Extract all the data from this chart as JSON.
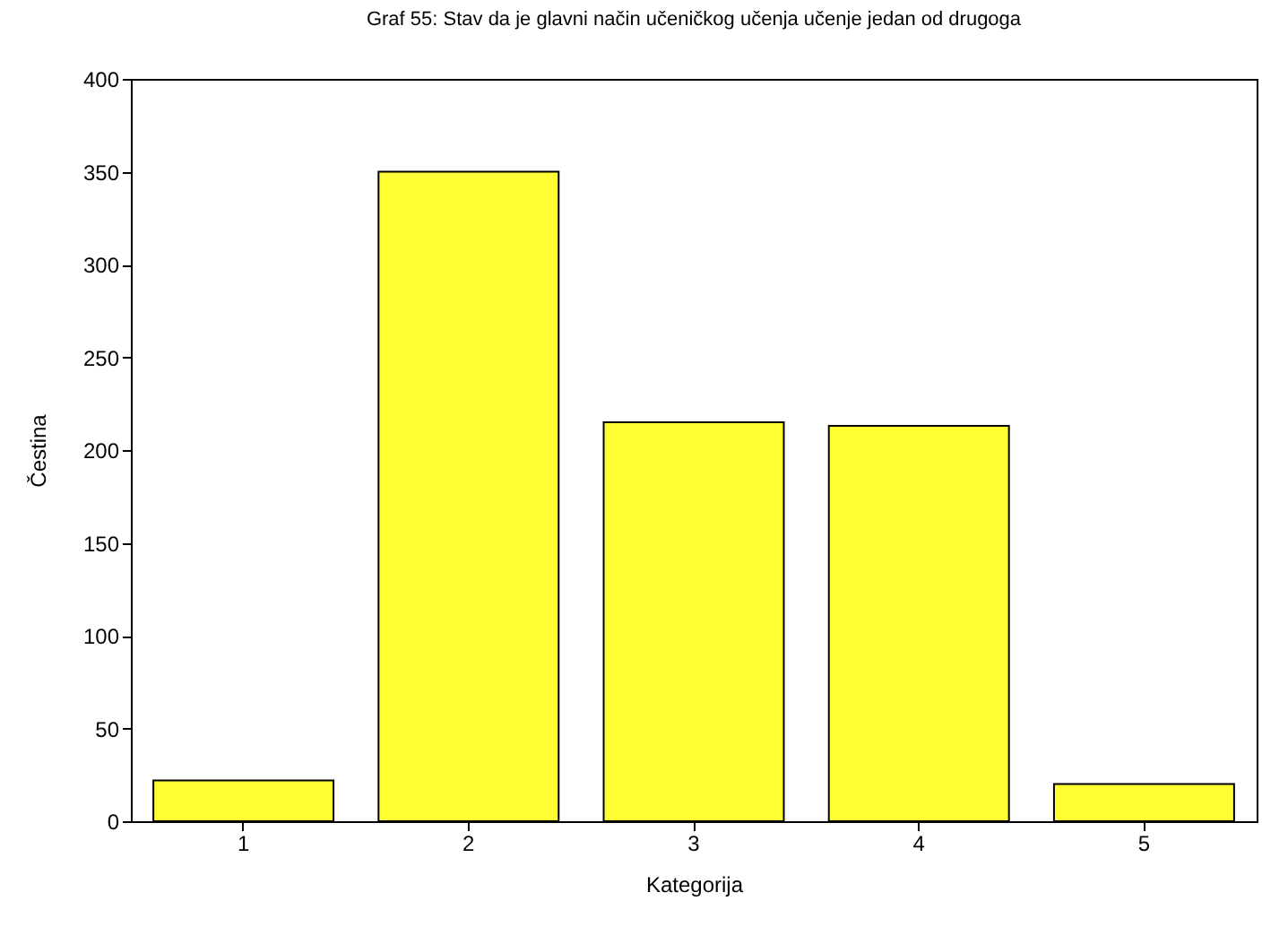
{
  "chart_data": {
    "type": "bar",
    "title": "Graf 55: Stav da je glavni način učeničkog učenja učenje jedan od drugoga",
    "xlabel": "Kategorija",
    "ylabel": "Čestina",
    "categories": [
      "1",
      "2",
      "3",
      "4",
      "5"
    ],
    "values": [
      22,
      350,
      215,
      213,
      20
    ],
    "color": "#ffff33",
    "ylim": [
      0,
      400
    ],
    "yticks": [
      0,
      50,
      100,
      150,
      200,
      250,
      300,
      350,
      400
    ],
    "grid": false
  }
}
